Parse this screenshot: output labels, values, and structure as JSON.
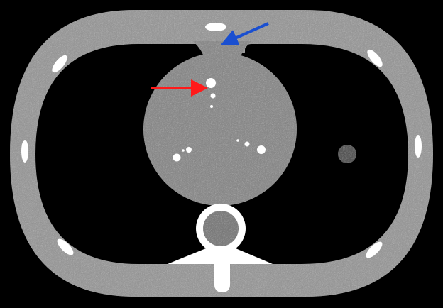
{
  "image": {
    "kind": "ct-phantom-axial-slice",
    "background_color": "#000000"
  },
  "colors": {
    "outer_shell": "#9a9a9a",
    "lung_field": "#000000",
    "central_body": "#8c8c8c",
    "bright_insert": "#ffffff",
    "small_lesion": "#5a5a5a",
    "spine_ring": "#ffffff",
    "spine_core": "#7e7e7e",
    "red_arrow": "#ff1a1a",
    "blue_arrow": "#1a4fd0"
  },
  "annotations": {
    "red_arrow": {
      "icon": "arrow-right-icon",
      "target": "vessel-insert"
    },
    "blue_arrow": {
      "icon": "arrow-down-left-icon",
      "target": "neck-region"
    }
  }
}
